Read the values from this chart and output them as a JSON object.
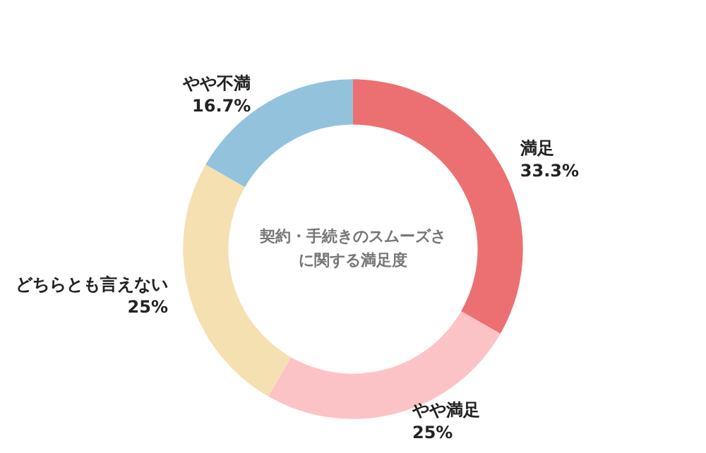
{
  "chart_data": {
    "type": "donut",
    "title": "契約・手続きのスムーズさに関する満足度",
    "categories": [
      "満足",
      "やや満足",
      "どちらとも言えない",
      "やや不満"
    ],
    "values": [
      33.3,
      25,
      25,
      16.7
    ],
    "colors": [
      "#ec7072",
      "#fcc3c6",
      "#f5e0b2",
      "#93c3dc"
    ],
    "value_labels": [
      "33.3%",
      "25%",
      "25%",
      "16.7%"
    ],
    "legend": false
  }
}
